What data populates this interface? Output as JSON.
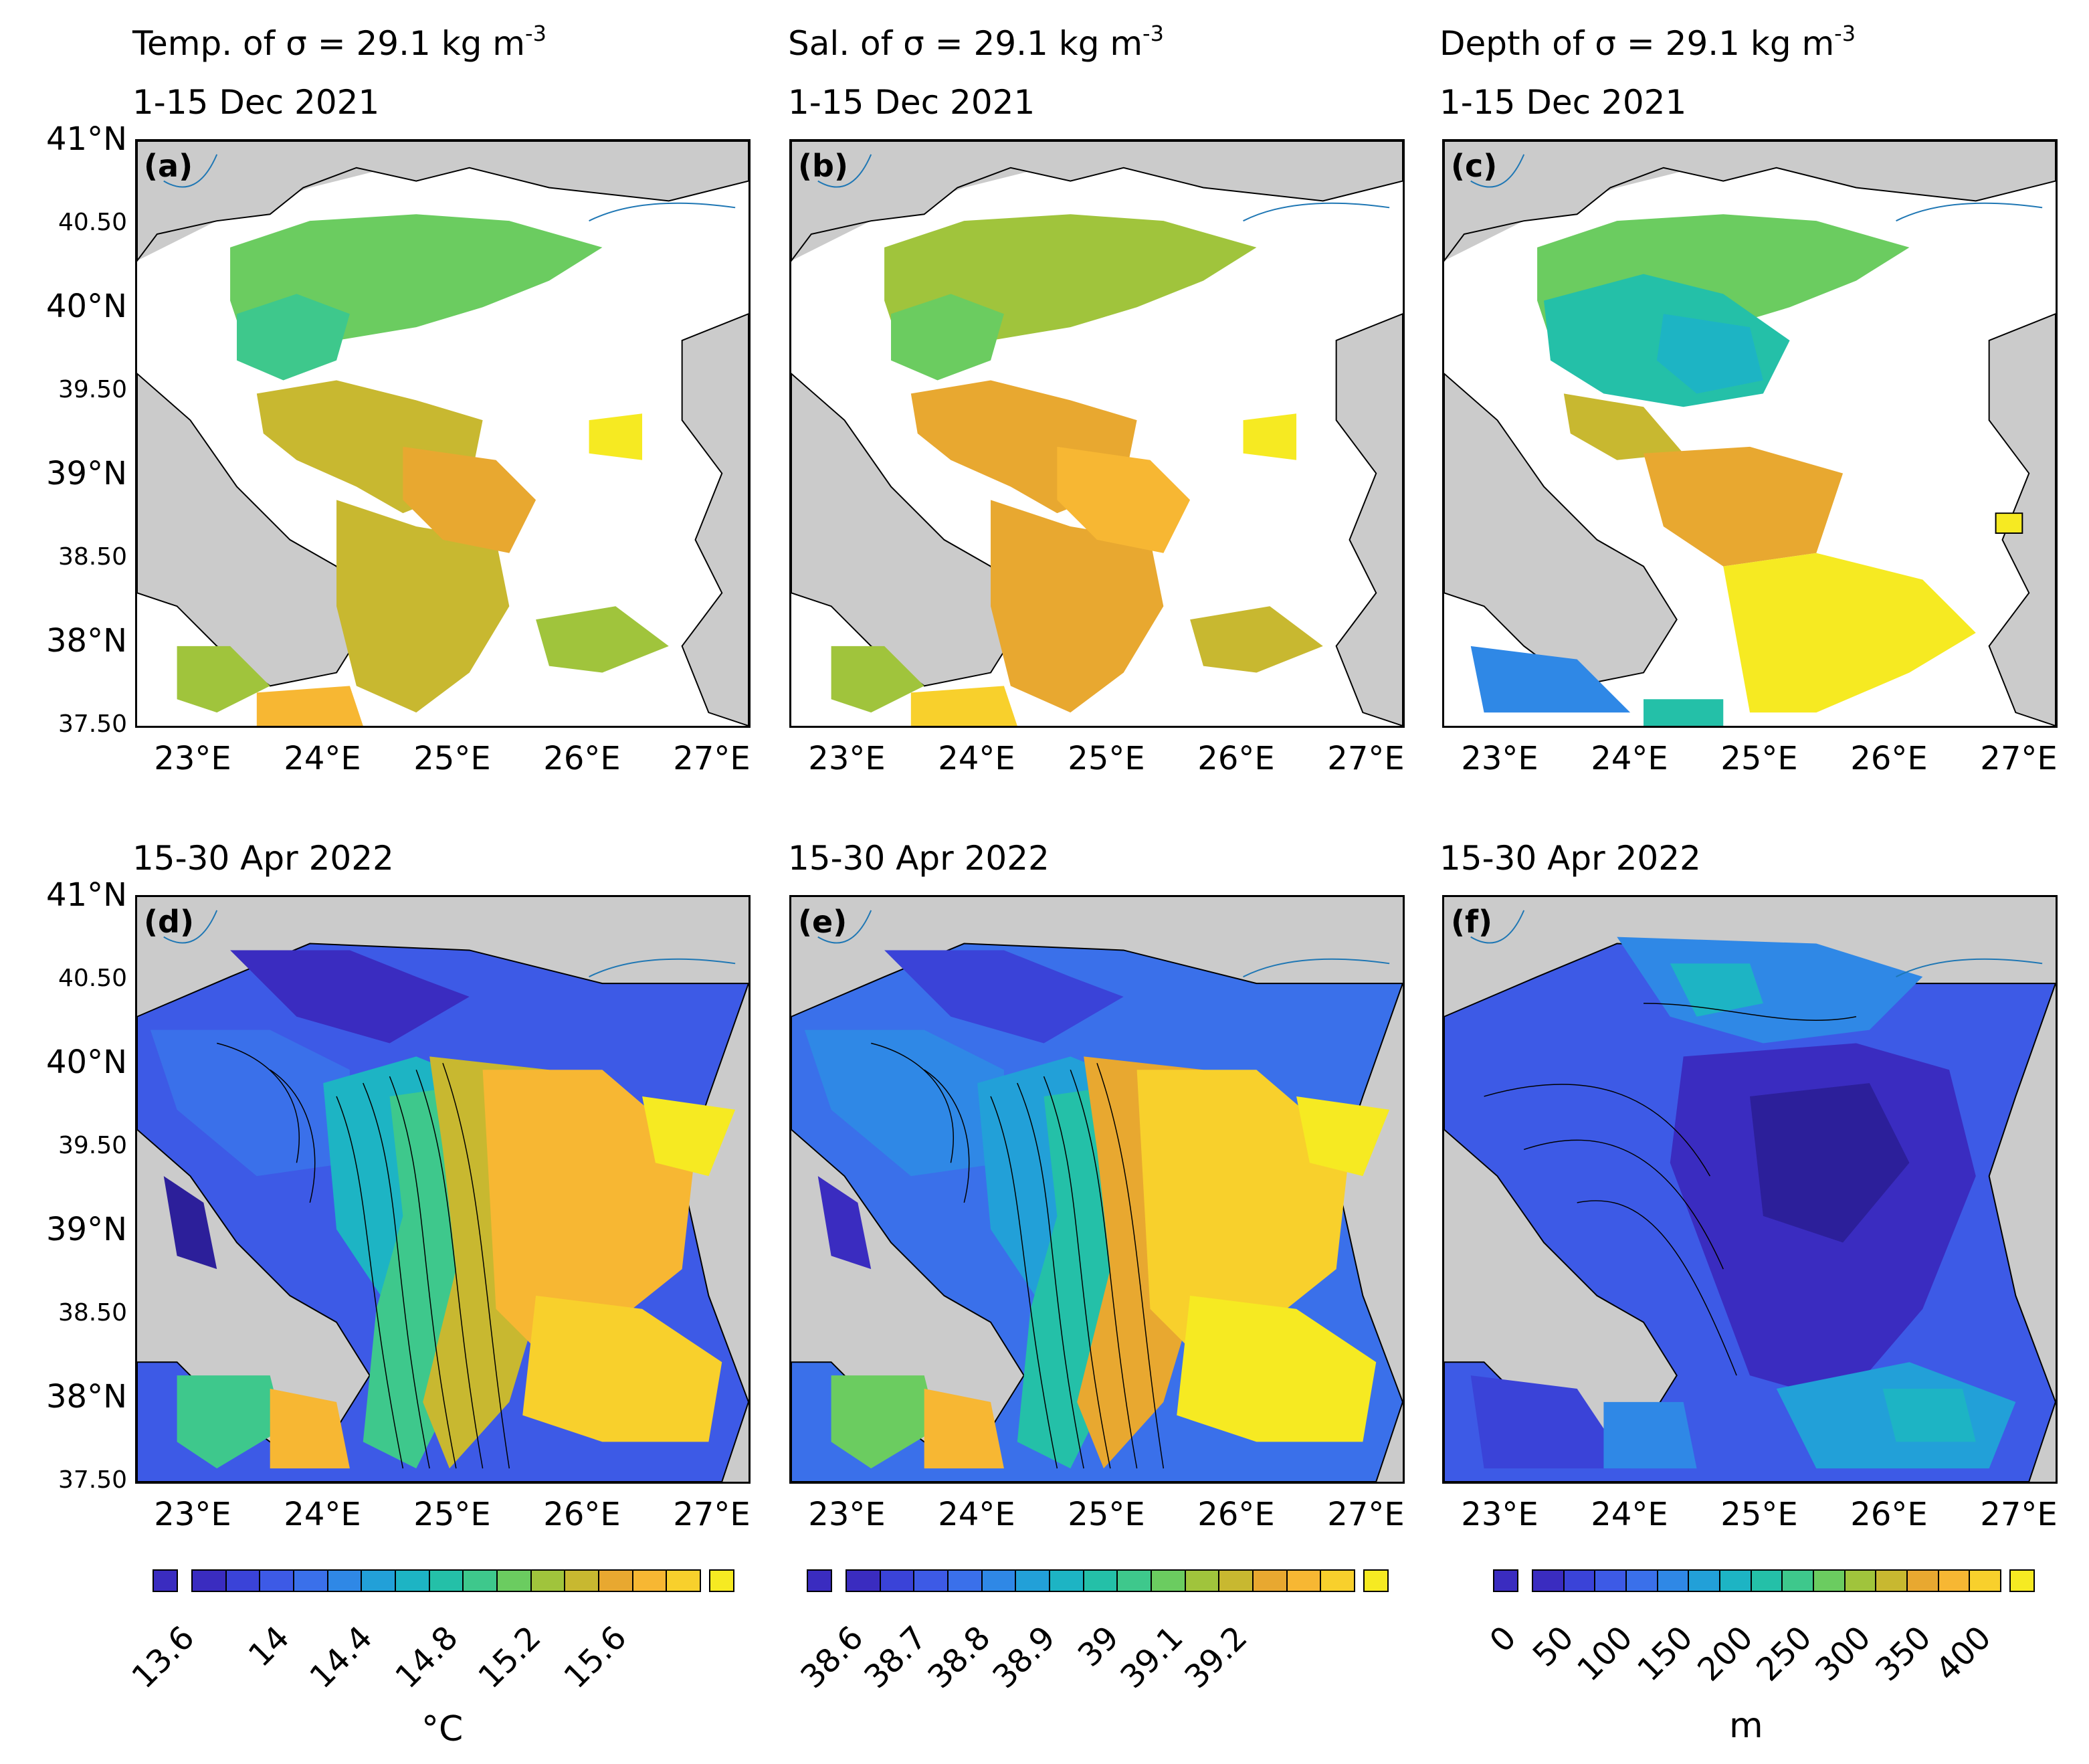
{
  "panels": [
    {
      "label": "(a)",
      "title": "Temp. of σ = 29.1 kg m",
      "title_sup": "-3",
      "period": "1-15 Dec 2021"
    },
    {
      "label": "(b)",
      "title": "Sal. of σ = 29.1 kg m",
      "title_sup": "-3",
      "period": "1-15 Dec 2021"
    },
    {
      "label": "(c)",
      "title": "Depth of σ = 29.1 kg m",
      "title_sup": "-3",
      "period": "1-15 Dec 2021"
    },
    {
      "label": "(d)",
      "period": "15-30 Apr 2022"
    },
    {
      "label": "(e)",
      "period": "15-30 Apr 2022"
    },
    {
      "label": "(f)",
      "period": "15-30 Apr 2022"
    }
  ],
  "axes": {
    "lat_labels": [
      "41°N",
      "40.50",
      "40°N",
      "39.50",
      "39°N",
      "38.50",
      "38°N",
      "37.50"
    ],
    "lon_labels": [
      "23°E",
      "24°E",
      "25°E",
      "26°E",
      "27°E"
    ]
  },
  "colorbars": [
    {
      "name": "temperature",
      "ticks": [
        "13.6",
        "14",
        "14.4",
        "14.8",
        "15.2",
        "15.6"
      ],
      "unit": "°C"
    },
    {
      "name": "salinity",
      "ticks": [
        "38.6",
        "38.7",
        "38.8",
        "38.9",
        "39",
        "39.1",
        "39.2"
      ],
      "unit": ""
    },
    {
      "name": "depth",
      "ticks": [
        "0",
        "50",
        "100",
        "150",
        "200",
        "250",
        "300",
        "350",
        "400"
      ],
      "unit": "m"
    }
  ],
  "colors": {
    "land": "#cbcbcb",
    "sea_nodata": "#ffffff",
    "river": "#1f77b4",
    "palette": [
      "#2c1f9a",
      "#3a2cc0",
      "#3a43d8",
      "#3d5ae6",
      "#3a70ea",
      "#2f88e6",
      "#22a0d8",
      "#1db4c4",
      "#24c0a8",
      "#3ec88c",
      "#6bcc60",
      "#a0c43c",
      "#c8b830",
      "#e8a830",
      "#f7b733",
      "#f8d02c",
      "#f6ea22"
    ]
  }
}
